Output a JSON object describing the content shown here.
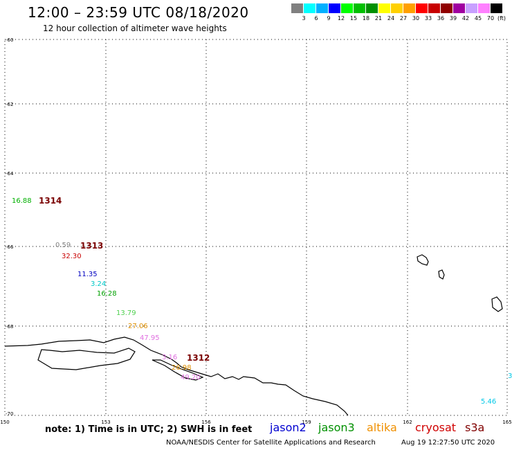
{
  "header": {
    "title": "12:00 – 23:59 UTC 08/18/2020",
    "subtitle": "12 hour collection of altimeter wave heights"
  },
  "legend": {
    "unit": "(ft)",
    "colors": [
      "#808080",
      "#00ffff",
      "#00b0ff",
      "#0000ff",
      "#00ff00",
      "#00c000",
      "#009000",
      "#ffff00",
      "#ffd000",
      "#ffa000",
      "#ff0000",
      "#c80000",
      "#900000",
      "#a000a0",
      "#c8a0ff",
      "#ff80ff",
      "#000000"
    ],
    "ticks": [
      "3",
      "6",
      "9",
      "12",
      "15",
      "18",
      "21",
      "24",
      "27",
      "30",
      "33",
      "36",
      "39",
      "42",
      "45",
      "70"
    ]
  },
  "map": {
    "lat_labels": [
      "-60",
      "-62",
      "-64",
      "-66",
      "-68",
      "-70"
    ],
    "lon_labels": [
      "150",
      "153",
      "156",
      "159",
      "162",
      "165"
    ]
  },
  "observations": [
    {
      "value": "16.88",
      "color": "#00b000"
    },
    {
      "value": "0.59",
      "color": "#808080"
    },
    {
      "value": "32.30",
      "color": "#c80000"
    },
    {
      "value": "11.35",
      "color": "#0000c0"
    },
    {
      "value": "3.24",
      "color": "#00c8c8"
    },
    {
      "value": "16.28",
      "color": "#00a000"
    },
    {
      "value": "13.79",
      "color": "#50d050"
    },
    {
      "value": "27.06",
      "color": "#e09000"
    },
    {
      "value": "47.95",
      "color": "#e070e0"
    },
    {
      "value": "3.16",
      "color": "#e070e0"
    },
    {
      "value": "26.98",
      "color": "#e09000"
    },
    {
      "value": "49.20",
      "color": "#e070e0"
    },
    {
      "value": "3",
      "color": "#00c8e8"
    },
    {
      "value": "5.46",
      "color": "#00c8e8"
    }
  ],
  "stations": [
    "1314",
    "1313",
    "1312"
  ],
  "footer": {
    "note": "note: 1) Time is in UTC; 2) SWH is in feet",
    "satellites": [
      {
        "name": "jason2",
        "color": "#0000d0"
      },
      {
        "name": "jason3",
        "color": "#009000"
      },
      {
        "name": "altika",
        "color": "#f09000"
      },
      {
        "name": "cryosat",
        "color": "#d00000"
      },
      {
        "name": "s3a",
        "color": "#800000"
      }
    ],
    "credit": "NOAA/NESDIS Center for Satellite Applications and Research",
    "issued": "Aug 19 12:27:50 UTC 2020"
  }
}
